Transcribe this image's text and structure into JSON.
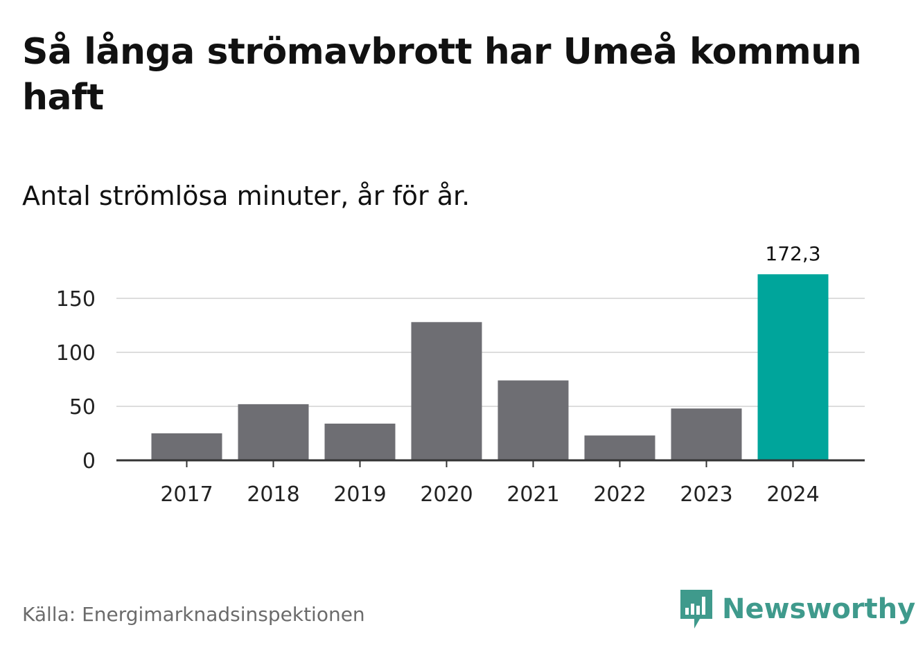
{
  "title": "Så långa strömavbrott har Umeå kommun haft",
  "subtitle": "Antal strömlösa minuter, år för år.",
  "source": "Källa: Energimarknadsinspektionen",
  "brand": {
    "name": "Newsworthy",
    "icon": "newsworthy-logo-icon",
    "color": "#3f9a8c"
  },
  "colors": {
    "bar": "#6e6e73",
    "highlight": "#00a59b",
    "grid": "#dddddd",
    "axis": "#333333"
  },
  "chart_data": {
    "type": "bar",
    "categories": [
      "2017",
      "2018",
      "2019",
      "2020",
      "2021",
      "2022",
      "2023",
      "2024"
    ],
    "values": [
      25,
      52,
      34,
      128,
      74,
      23,
      48,
      172.3
    ],
    "highlight_index": 7,
    "data_labels": [
      {
        "index": 7,
        "text": "172,3"
      }
    ],
    "yticks": [
      "0",
      "50",
      "100",
      "150"
    ],
    "ylim": [
      0,
      175
    ],
    "grid": true,
    "xlabel": "",
    "ylabel": ""
  }
}
